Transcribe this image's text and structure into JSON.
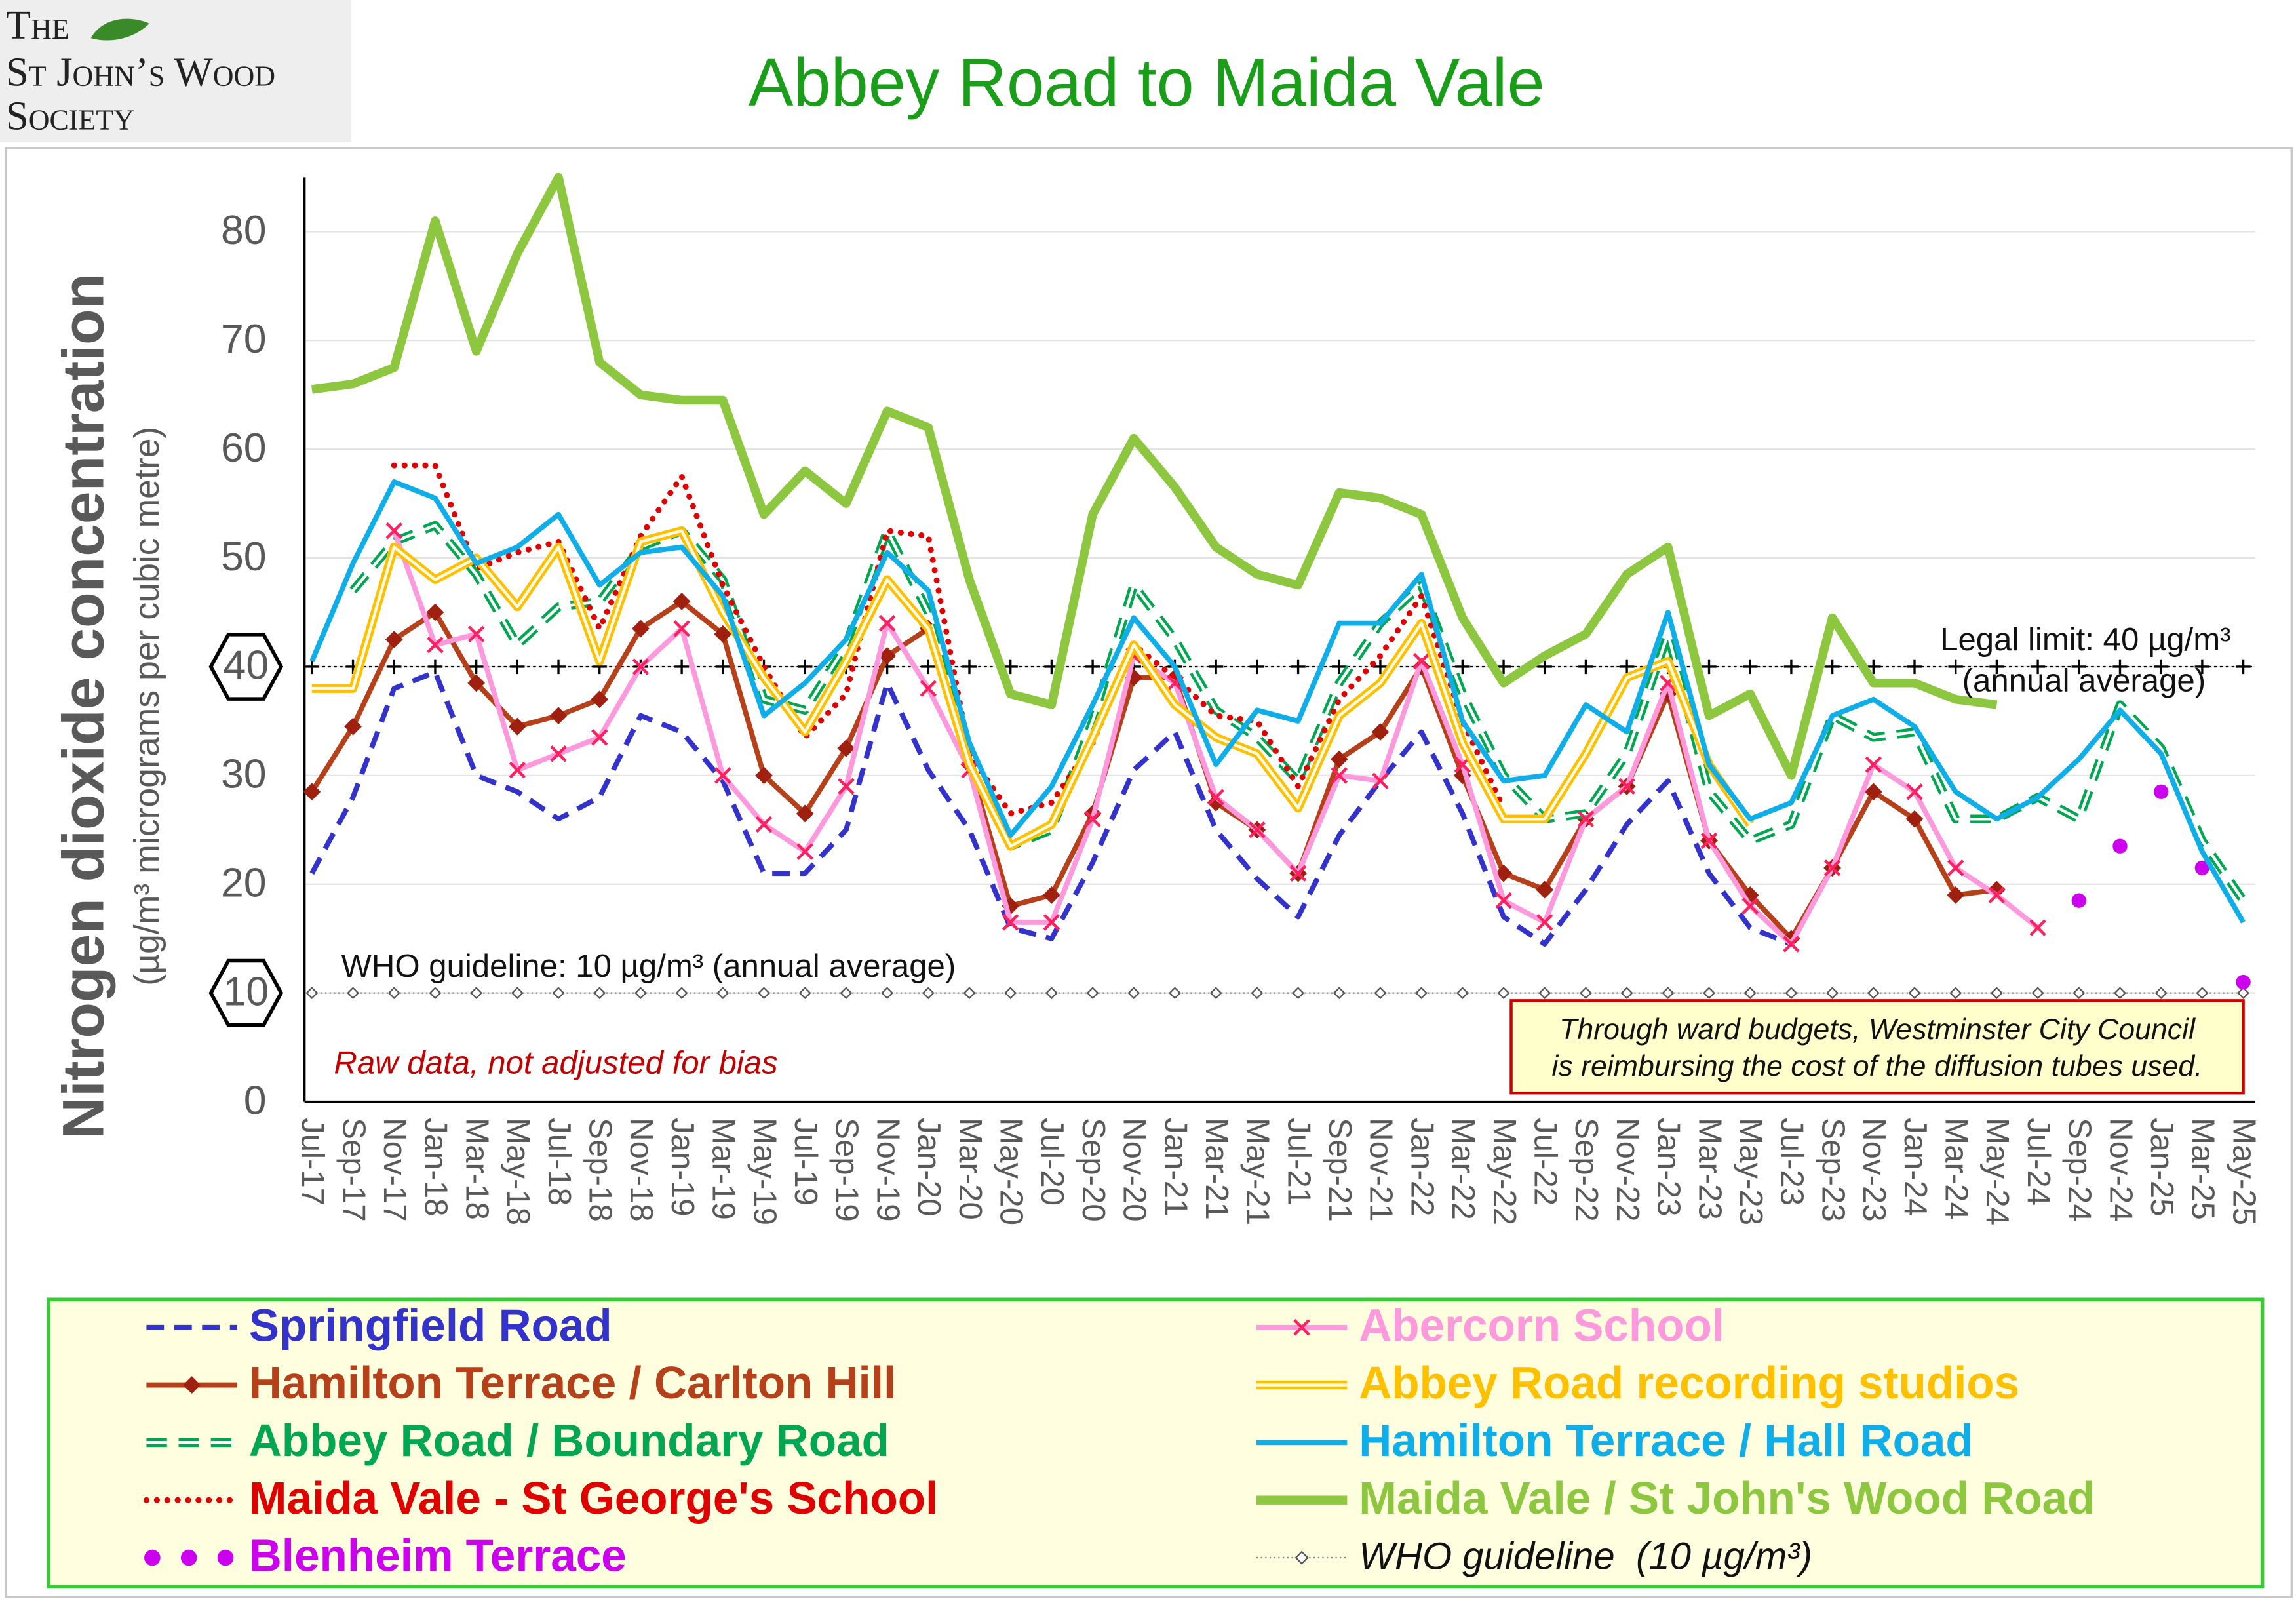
{
  "chart_data": {
    "type": "line",
    "title": "Abbey Road to Maida Vale",
    "logo": [
      "The",
      "St John’s Wood",
      "Society"
    ],
    "y_label": "Nitrogen dioxide concentration",
    "y_sublabel": "(µg/m³ micrograms per cubic metre)",
    "categories": [
      "Jul-17",
      "Sep-17",
      "Nov-17",
      "Jan-18",
      "Mar-18",
      "May-18",
      "Jul-18",
      "Sep-18",
      "Nov-18",
      "Jan-19",
      "Mar-19",
      "May-19",
      "Jul-19",
      "Sep-19",
      "Nov-19",
      "Jan-20",
      "Mar-20",
      "May-20",
      "Jul-20",
      "Sep-20",
      "Nov-20",
      "Jan-21",
      "Mar-21",
      "May-21",
      "Jul-21",
      "Sep-21",
      "Nov-21",
      "Jan-22",
      "Mar-22",
      "May-22",
      "Jul-22",
      "Sep-22",
      "Nov-22",
      "Jan-23",
      "Mar-23",
      "May-23",
      "Jul-23",
      "Sep-23",
      "Nov-23",
      "Jan-24",
      "Mar-24",
      "May-24",
      "Jul-24",
      "Sep-24",
      "Nov-24",
      "Jan-25",
      "Mar-25",
      "May-25"
    ],
    "ylim": [
      0,
      85
    ],
    "yticks": [
      0,
      10,
      20,
      30,
      40,
      50,
      60,
      70,
      80
    ],
    "highlight_yticks": [
      10,
      40
    ],
    "grid": true,
    "legal_limit": {
      "value": 40,
      "label": "Legal limit: 40 µg/m³",
      "note": "(annual average)"
    },
    "who_annotation": "WHO guideline: 10 µg/m³ (annual average)",
    "bias_note": "Raw data, not adjusted for bias",
    "note": [
      "Through ward budgets, Westminster City Council",
      "is reimbursing the cost of the diffusion tubes used."
    ],
    "series": [
      {
        "name": "Springfield Road",
        "color": "#3333cc",
        "style": "dashed",
        "values": [
          21,
          28,
          38,
          39.5,
          30,
          28.5,
          26,
          28,
          35.5,
          34,
          29.5,
          21,
          21,
          25,
          38.5,
          30.5,
          25,
          16,
          15,
          22,
          30.5,
          34,
          25,
          20.5,
          17,
          24.5,
          29.5,
          34,
          26.5,
          17,
          14.5,
          19.5,
          25.5,
          29.5,
          21,
          16,
          14.5,
          null,
          null,
          null,
          null,
          null,
          null,
          null,
          null,
          null,
          null,
          null
        ]
      },
      {
        "name": "Hamilton Terrace / Carlton Hill",
        "color": "#b5401a",
        "style": "solid",
        "marker": "diamond",
        "values": [
          28.5,
          34.5,
          42.5,
          45,
          38.5,
          34.5,
          35.5,
          37,
          43.5,
          46,
          43,
          30,
          26.5,
          32.5,
          41,
          43.5,
          31,
          18,
          19,
          26.5,
          39,
          39,
          27.5,
          25,
          21,
          31.5,
          34,
          40,
          30,
          21,
          19.5,
          26,
          29,
          37.5,
          24,
          19,
          15,
          21.5,
          28.5,
          26,
          19,
          19.5,
          null,
          null,
          null,
          null,
          null,
          null
        ]
      },
      {
        "name": "Abbey Road / Boundary Road",
        "color": "#00a651",
        "style": "hollow-dashed",
        "values": [
          null,
          47,
          51.5,
          53,
          48.5,
          42,
          45.5,
          46,
          51,
          52.5,
          48,
          37,
          36,
          42,
          52.5,
          45,
          31,
          23.5,
          25,
          35,
          47.5,
          42.5,
          36,
          33.5,
          29.5,
          38.5,
          44,
          47.5,
          37.5,
          30,
          26,
          26.5,
          32,
          43,
          28.5,
          24,
          25.5,
          35.5,
          33.5,
          34,
          26,
          26,
          28,
          26,
          36.5,
          32.5,
          24,
          18.5
        ]
      },
      {
        "name": "Maida Vale - St George's School",
        "color": "#e00000",
        "style": "dotted",
        "values": [
          null,
          null,
          58.5,
          58.5,
          49,
          50.5,
          51.5,
          43.5,
          52,
          57.5,
          47.5,
          40,
          33.5,
          37.5,
          52.5,
          52,
          32,
          26.5,
          27.5,
          33,
          42,
          39,
          35.5,
          35,
          29,
          37,
          41,
          46.5,
          35,
          27,
          null,
          null,
          null,
          null,
          null,
          null,
          null,
          null,
          null,
          null,
          null,
          null,
          null,
          null,
          null,
          null,
          null,
          null
        ]
      },
      {
        "name": "Blenheim Terrace",
        "color": "#cc00ee",
        "style": "dots",
        "values": [
          null,
          null,
          null,
          null,
          null,
          null,
          null,
          null,
          null,
          null,
          null,
          null,
          null,
          null,
          null,
          null,
          null,
          null,
          null,
          null,
          null,
          null,
          null,
          null,
          null,
          null,
          null,
          null,
          null,
          null,
          null,
          null,
          null,
          null,
          null,
          null,
          null,
          null,
          null,
          null,
          null,
          null,
          null,
          18.5,
          23.5,
          28.5,
          21.5,
          11
        ]
      },
      {
        "name": "Abercorn School",
        "color": "#ff99dd",
        "style": "solid",
        "marker": "x",
        "values": [
          null,
          null,
          52.5,
          42,
          43,
          30.5,
          32,
          33.5,
          40,
          43.5,
          30,
          25.5,
          23,
          29,
          44,
          38,
          30.5,
          16.5,
          16.5,
          26,
          41,
          38.5,
          28,
          25,
          21,
          30,
          29.5,
          40.5,
          31,
          18.5,
          16.5,
          26,
          29,
          38.5,
          24,
          18,
          14.5,
          21.5,
          31,
          28.5,
          21.5,
          19,
          16,
          null,
          null,
          null,
          null,
          null
        ]
      },
      {
        "name": "Abbey Road recording studios",
        "color": "#ffc000",
        "style": "double",
        "values": [
          38,
          38,
          51,
          48,
          50,
          45.5,
          51,
          40.5,
          51.5,
          52.5,
          45,
          39,
          34,
          40.5,
          48,
          43.5,
          31,
          23.5,
          25.5,
          33.5,
          42,
          36.5,
          33.5,
          32,
          27,
          35.5,
          38.5,
          44,
          33,
          26,
          26,
          32,
          39,
          40.5,
          31,
          25.5,
          null,
          null,
          null,
          null,
          null,
          null,
          null,
          null,
          null,
          null,
          null,
          null
        ]
      },
      {
        "name": "Hamilton Terrace / Hall Road",
        "color": "#10aee8",
        "style": "solid",
        "values": [
          40.5,
          49.5,
          57,
          55.5,
          49.5,
          51,
          54,
          47.5,
          50.5,
          51,
          46.5,
          35.5,
          38.5,
          42.5,
          50.5,
          47,
          33,
          24.5,
          29,
          36.5,
          44.5,
          40,
          31,
          36,
          35,
          44,
          44,
          48.5,
          35,
          29.5,
          30,
          36.5,
          34,
          45,
          31,
          26,
          27.5,
          35.5,
          37,
          34.5,
          28.5,
          26,
          28,
          31.5,
          36,
          32,
          23,
          16.5
        ]
      },
      {
        "name": "Maida Vale / St John's Wood Road",
        "color": "#8dc63f",
        "style": "thick",
        "values": [
          65.5,
          66,
          67.5,
          81,
          69,
          78,
          85,
          68,
          65,
          64.5,
          64.5,
          54,
          58,
          55,
          63.5,
          62,
          48,
          37.5,
          36.5,
          54,
          61,
          56.5,
          51,
          48.5,
          47.5,
          56,
          55.5,
          54,
          44.5,
          38.5,
          41,
          43,
          48.5,
          51,
          35.5,
          37.5,
          30,
          44.5,
          38.5,
          38.5,
          37,
          36.5,
          null,
          null,
          null,
          null,
          null,
          null
        ]
      },
      {
        "name": "WHO guideline  (10 µg/m³)",
        "color": "#808080",
        "style": "who",
        "marker": "small-diamond",
        "values": [
          10,
          10,
          10,
          10,
          10,
          10,
          10,
          10,
          10,
          10,
          10,
          10,
          10,
          10,
          10,
          10,
          10,
          10,
          10,
          10,
          10,
          10,
          10,
          10,
          10,
          10,
          10,
          10,
          10,
          10,
          10,
          10,
          10,
          10,
          10,
          10,
          10,
          10,
          10,
          10,
          10,
          10,
          10,
          10,
          10,
          10,
          10,
          10
        ]
      }
    ]
  }
}
